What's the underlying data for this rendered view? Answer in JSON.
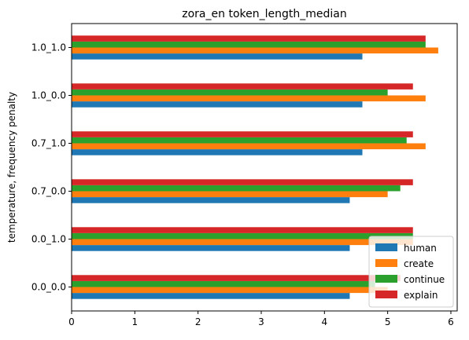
{
  "chart_data": {
    "type": "bar",
    "orientation": "horizontal",
    "title": "zora_en token_length_median",
    "xlabel": "",
    "ylabel": "temperature, frequency penalty",
    "categories": [
      "0.0_0.0",
      "0.0_1.0",
      "0.7_0.0",
      "0.7_1.0",
      "1.0_0.0",
      "1.0_1.0"
    ],
    "xlim": [
      0,
      6.1
    ],
    "xticks": [
      0,
      1,
      2,
      3,
      4,
      5,
      6
    ],
    "grid": false,
    "legend_position": "lower right",
    "series": [
      {
        "name": "human",
        "color": "#1f77b4",
        "values": [
          4.4,
          4.4,
          4.4,
          4.6,
          4.6,
          4.6
        ]
      },
      {
        "name": "create",
        "color": "#ff7f0e",
        "values": [
          5.0,
          5.4,
          5.0,
          5.6,
          5.6,
          5.8
        ]
      },
      {
        "name": "continue",
        "color": "#2ca02c",
        "values": [
          4.8,
          5.4,
          5.2,
          5.3,
          5.0,
          5.6
        ]
      },
      {
        "name": "explain",
        "color": "#d62728",
        "values": [
          5.2,
          5.4,
          5.4,
          5.4,
          5.4,
          5.6
        ]
      }
    ]
  }
}
